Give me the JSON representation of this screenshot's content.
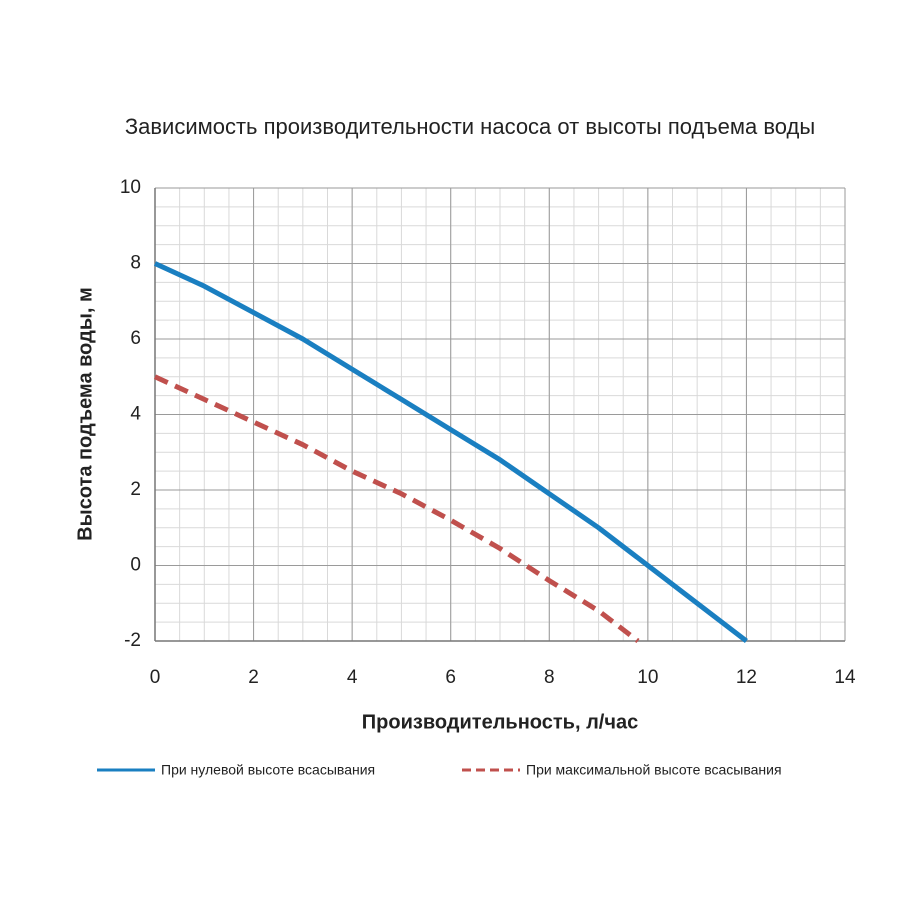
{
  "chart_data": {
    "type": "line",
    "title": "Зависимость производительности насоса от высоты подъема воды",
    "x_label": "Производительность, л/час",
    "y_label": "Высота подъема воды, м",
    "xlim": [
      0,
      14
    ],
    "xticks": [
      0,
      2,
      4,
      6,
      8,
      10,
      12,
      14
    ],
    "ylim": [
      -2,
      10
    ],
    "yticks": [
      -2,
      0,
      2,
      4,
      6,
      8,
      10
    ],
    "grid": true,
    "legend": "bottom",
    "series": [
      {
        "name": "При нулевой высоте всасывания",
        "color": "#1a7fc1",
        "dash": "solid",
        "x": [
          0,
          1,
          2,
          3,
          4,
          5,
          6,
          7,
          8,
          9,
          10,
          11,
          12
        ],
        "values": [
          8,
          7.4,
          6.7,
          6.0,
          5.2,
          4.4,
          3.6,
          2.8,
          1.9,
          1.0,
          0,
          -1,
          -2
        ]
      },
      {
        "name": "При максимальной высоте всасывания",
        "color": "#c0504d",
        "dash": "dashed",
        "x": [
          0,
          1,
          2,
          3,
          4,
          5,
          6,
          7,
          8,
          9,
          9.8
        ],
        "values": [
          5,
          4.4,
          3.8,
          3.2,
          2.5,
          1.9,
          1.2,
          0.45,
          -0.4,
          -1.2,
          -2
        ]
      }
    ]
  }
}
